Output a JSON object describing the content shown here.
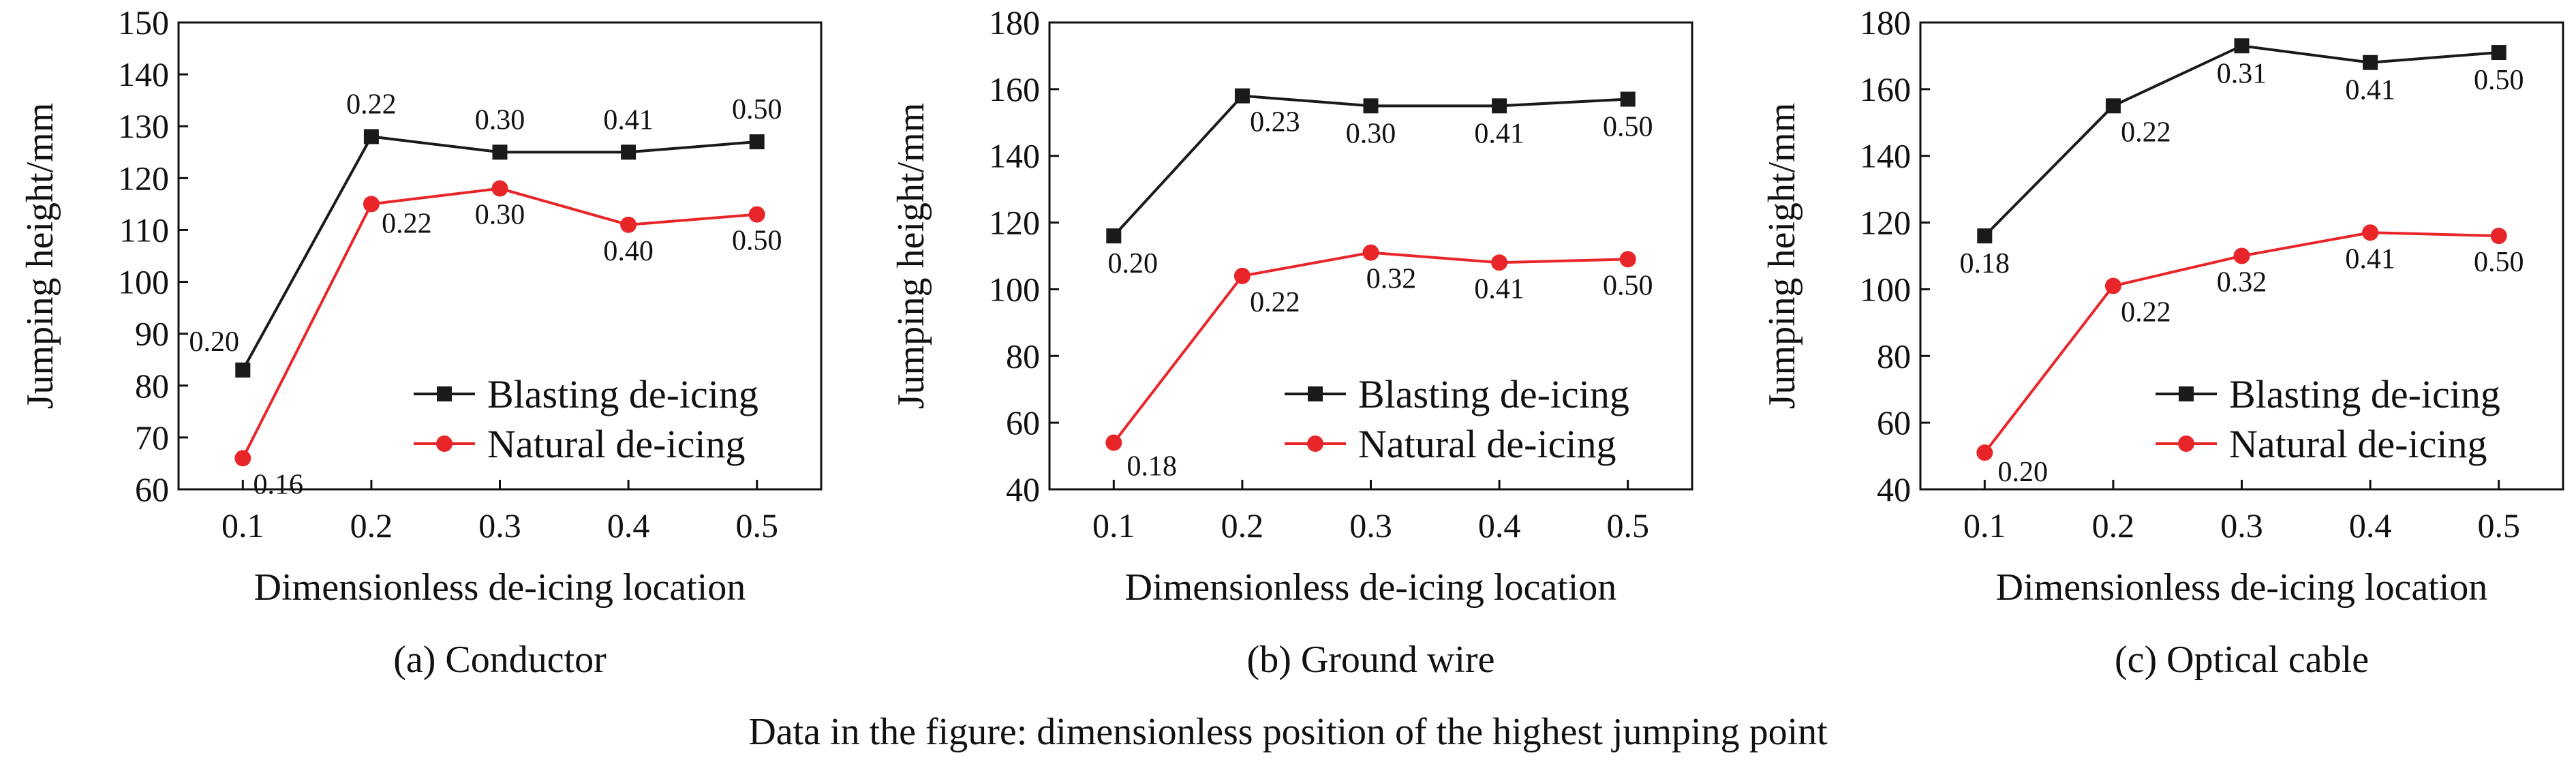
{
  "figure": {
    "caption": "Data in the figure: dimensionless position of the highest jumping point"
  },
  "chart_data": [
    {
      "type": "line",
      "panel_caption": "(a) Conductor",
      "xlabel": "Dimensionless de-icing location",
      "ylabel": "Jumping height/mm",
      "x": [
        0.1,
        0.2,
        0.3,
        0.4,
        0.5
      ],
      "x_ticks": [
        "0.1",
        "0.2",
        "0.3",
        "0.4",
        "0.5"
      ],
      "ylim": [
        60,
        150
      ],
      "y_ticks": [
        "60",
        "70",
        "80",
        "90",
        "100",
        "110",
        "120",
        "130",
        "140",
        "150"
      ],
      "legend_position": "lower-right",
      "grid": false,
      "series": [
        {
          "name": "Blasting de-icing",
          "color": "#1a1a1a",
          "marker": "square",
          "values": [
            83,
            128,
            125,
            125,
            127
          ],
          "point_labels": [
            "0.20",
            "0.22",
            "0.30",
            "0.41",
            "0.50"
          ]
        },
        {
          "name": "Natural de-icing",
          "color": "#e8262a",
          "marker": "circle",
          "values": [
            66,
            115,
            118,
            111,
            113
          ],
          "point_labels": [
            "0.16",
            "0.22",
            "0.30",
            "0.40",
            "0.50"
          ]
        }
      ]
    },
    {
      "type": "line",
      "panel_caption": "(b) Ground wire",
      "xlabel": "Dimensionless de-icing location",
      "ylabel": "Jumping height/mm",
      "x": [
        0.1,
        0.2,
        0.3,
        0.4,
        0.5
      ],
      "x_ticks": [
        "0.1",
        "0.2",
        "0.3",
        "0.4",
        "0.5"
      ],
      "ylim": [
        40,
        180
      ],
      "y_ticks": [
        "40",
        "60",
        "80",
        "100",
        "120",
        "140",
        "160",
        "180"
      ],
      "legend_position": "lower-right",
      "grid": false,
      "series": [
        {
          "name": "Blasting de-icing",
          "color": "#1a1a1a",
          "marker": "square",
          "values": [
            116,
            158,
            155,
            155,
            157
          ],
          "point_labels": [
            "0.20",
            "0.23",
            "0.30",
            "0.41",
            "0.50"
          ]
        },
        {
          "name": "Natural de-icing",
          "color": "#e8262a",
          "marker": "circle",
          "values": [
            54,
            104,
            111,
            108,
            109
          ],
          "point_labels": [
            "0.18",
            "0.22",
            "0.32",
            "0.41",
            "0.50"
          ]
        }
      ]
    },
    {
      "type": "line",
      "panel_caption": "(c) Optical cable",
      "xlabel": "Dimensionless de-icing location",
      "ylabel": "Jumping height/mm",
      "x": [
        0.1,
        0.2,
        0.3,
        0.4,
        0.5
      ],
      "x_ticks": [
        "0.1",
        "0.2",
        "0.3",
        "0.4",
        "0.5"
      ],
      "ylim": [
        40,
        180
      ],
      "y_ticks": [
        "40",
        "60",
        "80",
        "100",
        "120",
        "140",
        "160",
        "180"
      ],
      "legend_position": "lower-right",
      "grid": false,
      "series": [
        {
          "name": "Blasting de-icing",
          "color": "#1a1a1a",
          "marker": "square",
          "values": [
            116,
            155,
            173,
            168,
            171
          ],
          "point_labels": [
            "0.18",
            "0.22",
            "0.31",
            "0.41",
            "0.50"
          ]
        },
        {
          "name": "Natural de-icing",
          "color": "#e8262a",
          "marker": "circle",
          "values": [
            51,
            101,
            110,
            117,
            116
          ],
          "point_labels": [
            "0.20",
            "0.22",
            "0.32",
            "0.41",
            "0.50"
          ]
        }
      ]
    }
  ]
}
